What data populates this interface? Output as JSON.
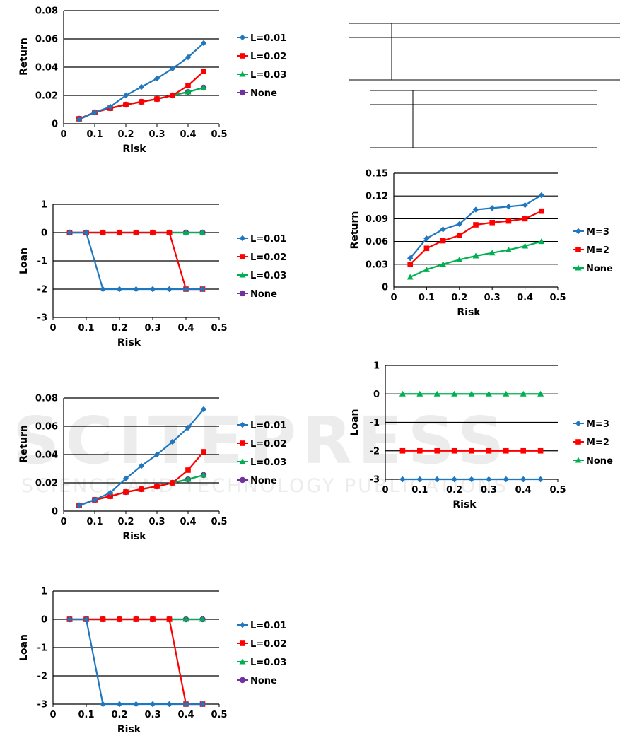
{
  "watermark": {
    "big": "SCITEPRESS",
    "small": "SCIENCE AND TECHNOLOGY PUBLICATIONS"
  },
  "chart_data": [
    {
      "type": "line",
      "xlabel": "Risk",
      "ylabel": "Return",
      "xlim": [
        0,
        0.5
      ],
      "ylim": [
        0,
        0.08
      ],
      "xticks": [
        "0",
        "0.1",
        "0.2",
        "0.3",
        "0.4",
        "0.5"
      ],
      "yticks": [
        "0",
        "0.02",
        "0.04",
        "0.06",
        "0.08"
      ],
      "x": [
        0.05,
        0.1,
        0.15,
        0.2,
        0.25,
        0.3,
        0.35,
        0.4,
        0.45
      ],
      "legend_position": "right",
      "series": [
        {
          "name": "L=0.01",
          "color": "#1f77c0",
          "marker": "diamond",
          "values": [
            0.003,
            0.008,
            0.012,
            0.02,
            0.026,
            0.032,
            0.039,
            0.047,
            0.057
          ]
        },
        {
          "name": "L=0.02",
          "color": "#ff0000",
          "marker": "square",
          "values": [
            0.0035,
            0.008,
            0.011,
            0.0135,
            0.0155,
            0.0175,
            0.02,
            0.027,
            0.037
          ]
        },
        {
          "name": "L=0.03",
          "color": "#00b050",
          "marker": "triangle",
          "values": [
            0.0035,
            0.008,
            0.011,
            0.0135,
            0.0155,
            0.0175,
            0.02,
            0.0225,
            0.0255
          ]
        },
        {
          "name": "None",
          "color": "#7030a0",
          "marker": "circle",
          "values": [
            0.0035,
            0.008,
            0.011,
            0.0135,
            0.0155,
            0.0175,
            0.02,
            0.0225,
            0.0255
          ]
        }
      ]
    },
    {
      "type": "line",
      "xlabel": "Risk",
      "ylabel": "Loan",
      "xlim": [
        0,
        0.5
      ],
      "ylim": [
        -3,
        1
      ],
      "xticks": [
        "0",
        "0.1",
        "0.2",
        "0.3",
        "0.4",
        "0.5"
      ],
      "yticks": [
        "-3",
        "-2",
        "-1",
        "0",
        "1"
      ],
      "x": [
        0.05,
        0.1,
        0.15,
        0.2,
        0.25,
        0.3,
        0.35,
        0.4,
        0.45
      ],
      "legend_position": "right",
      "series": [
        {
          "name": "L=0.01",
          "color": "#1f77c0",
          "marker": "diamond",
          "values": [
            0,
            0,
            -2,
            -2,
            -2,
            -2,
            -2,
            -2,
            -2
          ]
        },
        {
          "name": "L=0.02",
          "color": "#ff0000",
          "marker": "square",
          "values": [
            0,
            0,
            0,
            0,
            0,
            0,
            0,
            -2,
            -2
          ]
        },
        {
          "name": "L=0.03",
          "color": "#00b050",
          "marker": "triangle",
          "values": [
            0,
            0,
            0,
            0,
            0,
            0,
            0,
            0,
            0
          ]
        },
        {
          "name": "None",
          "color": "#7030a0",
          "marker": "circle",
          "values": [
            0,
            0,
            0,
            0,
            0,
            0,
            0,
            0,
            0
          ]
        }
      ]
    },
    {
      "type": "line",
      "xlabel": "Risk",
      "ylabel": "Return",
      "xlim": [
        0,
        0.5
      ],
      "ylim": [
        0,
        0.08
      ],
      "xticks": [
        "0",
        "0.1",
        "0.2",
        "0.3",
        "0.4",
        "0.5"
      ],
      "yticks": [
        "0",
        "0.02",
        "0.04",
        "0.06",
        "0.08"
      ],
      "x": [
        0.05,
        0.1,
        0.15,
        0.2,
        0.25,
        0.3,
        0.35,
        0.4,
        0.45
      ],
      "legend_position": "right",
      "series": [
        {
          "name": "L=0.01",
          "color": "#1f77c0",
          "marker": "diamond",
          "values": [
            0.004,
            0.008,
            0.013,
            0.023,
            0.032,
            0.04,
            0.049,
            0.059,
            0.072
          ]
        },
        {
          "name": "L=0.02",
          "color": "#ff0000",
          "marker": "square",
          "values": [
            0.004,
            0.008,
            0.0105,
            0.0135,
            0.0155,
            0.0175,
            0.02,
            0.029,
            0.042
          ]
        },
        {
          "name": "L=0.03",
          "color": "#00b050",
          "marker": "triangle",
          "values": [
            0.004,
            0.008,
            0.0105,
            0.0135,
            0.0155,
            0.0175,
            0.02,
            0.0225,
            0.0255
          ]
        },
        {
          "name": "None",
          "color": "#7030a0",
          "marker": "circle",
          "values": [
            0.004,
            0.008,
            0.0105,
            0.0135,
            0.0155,
            0.0175,
            0.02,
            0.0225,
            0.0255
          ]
        }
      ]
    },
    {
      "type": "line",
      "xlabel": "Risk",
      "ylabel": "Loan",
      "xlim": [
        0,
        0.5
      ],
      "ylim": [
        -3,
        1
      ],
      "xticks": [
        "0",
        "0.1",
        "0.2",
        "0.3",
        "0.4",
        "0.5"
      ],
      "yticks": [
        "-3",
        "-2",
        "-1",
        "0",
        "1"
      ],
      "x": [
        0.05,
        0.1,
        0.15,
        0.2,
        0.25,
        0.3,
        0.35,
        0.4,
        0.45
      ],
      "legend_position": "right",
      "series": [
        {
          "name": "L=0.01",
          "color": "#1f77c0",
          "marker": "diamond",
          "values": [
            0,
            0,
            -3,
            -3,
            -3,
            -3,
            -3,
            -3,
            -3
          ]
        },
        {
          "name": "L=0.02",
          "color": "#ff0000",
          "marker": "square",
          "values": [
            0,
            0,
            0,
            0,
            0,
            0,
            0,
            -3,
            -3
          ]
        },
        {
          "name": "L=0.03",
          "color": "#00b050",
          "marker": "triangle",
          "values": [
            0,
            0,
            0,
            0,
            0,
            0,
            0,
            0,
            0
          ]
        },
        {
          "name": "None",
          "color": "#7030a0",
          "marker": "circle",
          "values": [
            0,
            0,
            0,
            0,
            0,
            0,
            0,
            0,
            0
          ]
        }
      ]
    },
    {
      "type": "line",
      "xlabel": "Risk",
      "ylabel": "Return",
      "xlim": [
        0,
        0.5
      ],
      "ylim": [
        0,
        0.15
      ],
      "xticks": [
        "0",
        "0.1",
        "0.2",
        "0.3",
        "0.4",
        "0.5"
      ],
      "yticks": [
        "0",
        "0.03",
        "0.06",
        "0.09",
        "0.12",
        "0.15"
      ],
      "x": [
        0.05,
        0.1,
        0.15,
        0.2,
        0.25,
        0.3,
        0.35,
        0.4,
        0.45
      ],
      "legend_position": "right",
      "series": [
        {
          "name": "M=3",
          "color": "#1f77c0",
          "marker": "diamond",
          "values": [
            0.038,
            0.064,
            0.076,
            0.083,
            0.102,
            0.104,
            0.106,
            0.108,
            0.121
          ]
        },
        {
          "name": "M=2",
          "color": "#ff0000",
          "marker": "square",
          "values": [
            0.03,
            0.051,
            0.061,
            0.068,
            0.082,
            0.085,
            0.087,
            0.09,
            0.1
          ]
        },
        {
          "name": "None",
          "color": "#00b050",
          "marker": "triangle",
          "values": [
            0.013,
            0.023,
            0.03,
            0.036,
            0.041,
            0.045,
            0.049,
            0.054,
            0.06
          ]
        }
      ]
    },
    {
      "type": "line",
      "xlabel": "Risk",
      "ylabel": "Loan",
      "xlim": [
        0,
        0.5
      ],
      "ylim": [
        -3,
        1
      ],
      "xticks": [
        "0",
        "0.1",
        "0.2",
        "0.3",
        "0.4",
        "0.5"
      ],
      "yticks": [
        "-3",
        "-2",
        "-1",
        "0",
        "1"
      ],
      "x": [
        0.05,
        0.1,
        0.15,
        0.2,
        0.25,
        0.3,
        0.35,
        0.4,
        0.45
      ],
      "legend_position": "right",
      "series": [
        {
          "name": "M=3",
          "color": "#1f77c0",
          "marker": "diamond",
          "values": [
            -3,
            -3,
            -3,
            -3,
            -3,
            -3,
            -3,
            -3,
            -3
          ]
        },
        {
          "name": "M=2",
          "color": "#ff0000",
          "marker": "square",
          "values": [
            -2,
            -2,
            -2,
            -2,
            -2,
            -2,
            -2,
            -2,
            -2
          ]
        },
        {
          "name": "None",
          "color": "#00b050",
          "marker": "triangle",
          "values": [
            0,
            0,
            0,
            0,
            0,
            0,
            0,
            0,
            0
          ]
        }
      ]
    }
  ]
}
